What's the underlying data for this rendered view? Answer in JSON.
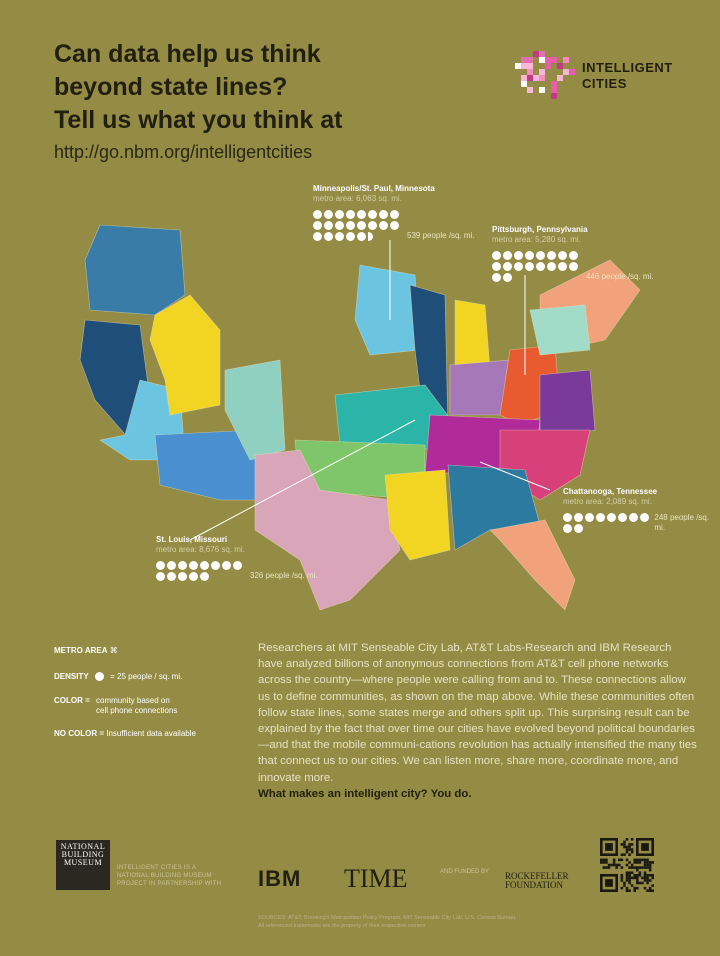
{
  "header": {
    "headline_lines": [
      "Can data help us think",
      "beyond state lines?",
      "Tell us what you think at"
    ],
    "url": "http://go.nbm.org/intelligentcities"
  },
  "logo": {
    "line1": "INTELLIGENT",
    "line2": "CITIES"
  },
  "callouts": [
    {
      "title": "Minneapolis/St. Paul, Minnesota",
      "area": "metro area: 6,063 sq. mi.",
      "density": "539 people /sq. mi.",
      "dots": 21.5
    },
    {
      "title": "Pittsburgh, Pennsylvania",
      "area": "metro area: 5,280 sq. mi.",
      "density": "446 people /sq. mi.",
      "dots": 18
    },
    {
      "title": "St. Louis, Missouri",
      "area": "metro area: 8,676 sq. mi.",
      "density": "326 people /sq. mi.",
      "dots": 13
    },
    {
      "title": "Chattanooga, Tennessee",
      "area": "metro area: 2,089 sq. mi.",
      "density": "248 people /sq. mi.",
      "dots": 10
    }
  ],
  "legend": {
    "metro_label": "METRO AREA",
    "density_label": "DENSITY",
    "density_desc": "= 25 people / sq. mi.",
    "color_label": "COLOR =",
    "color_desc_1": "community based on",
    "color_desc_2": "cell phone connections",
    "nocolor_label": "NO COLOR =",
    "nocolor_desc": "Insufficient data available"
  },
  "body": {
    "text": "Researchers at MIT Senseable City Lab, AT&T Labs-Research and IBM Research have analyzed billions of anonymous connections from AT&T cell phone networks across the country—where people were calling from and to. These connections allow us to define communities, as shown on the map above. While these communities often follow state lines, some states merge and others split up. This surprising result can be explained by the fact that over time our cities have evolved beyond political boundaries—and that the mobile communi-cations revolution has actually intensified the many ties that connect us to our cities. We can listen more, share more, coordinate more, and innovate more.",
    "closing": "What makes an intelligent city? You do."
  },
  "footer": {
    "nbm": "NATIONAL BUILDING MUSEUM",
    "partner_1": "INTELLIGENT CITIES IS A",
    "partner_2": "NATIONAL BUILDING MUSEUM",
    "partner_3": "PROJECT IN PARTNERSHIP WITH",
    "ibm": "IBM",
    "time": "TIME",
    "funded": "AND FUNDED BY",
    "rock_1": "ROCKEFELLER",
    "rock_2": "FOUNDATION",
    "sources_1": "SOURCES: AT&T, Brooking's Metropolitan Policy Program, MIT Senseable City Lab, U.S. Census Bureau.",
    "sources_2": "All referenced trademarks are the property of their respective owners"
  },
  "colors": {
    "background": "#948b45",
    "steel": "#3a7ca8",
    "navy": "#1f4f78",
    "cyan": "#6cc5e0",
    "blue": "#4a90d0",
    "yellow": "#f2d422",
    "mint": "#8fd0c0",
    "teal": "#2bb5a8",
    "green": "#7fc66a",
    "pink": "#d8a6b8",
    "salmon": "#f2a27a",
    "purple": "#b02a9a",
    "lilac": "#a678b8",
    "orange": "#e85a30",
    "violet": "#7a3a9a",
    "magenta": "#d8407a"
  }
}
